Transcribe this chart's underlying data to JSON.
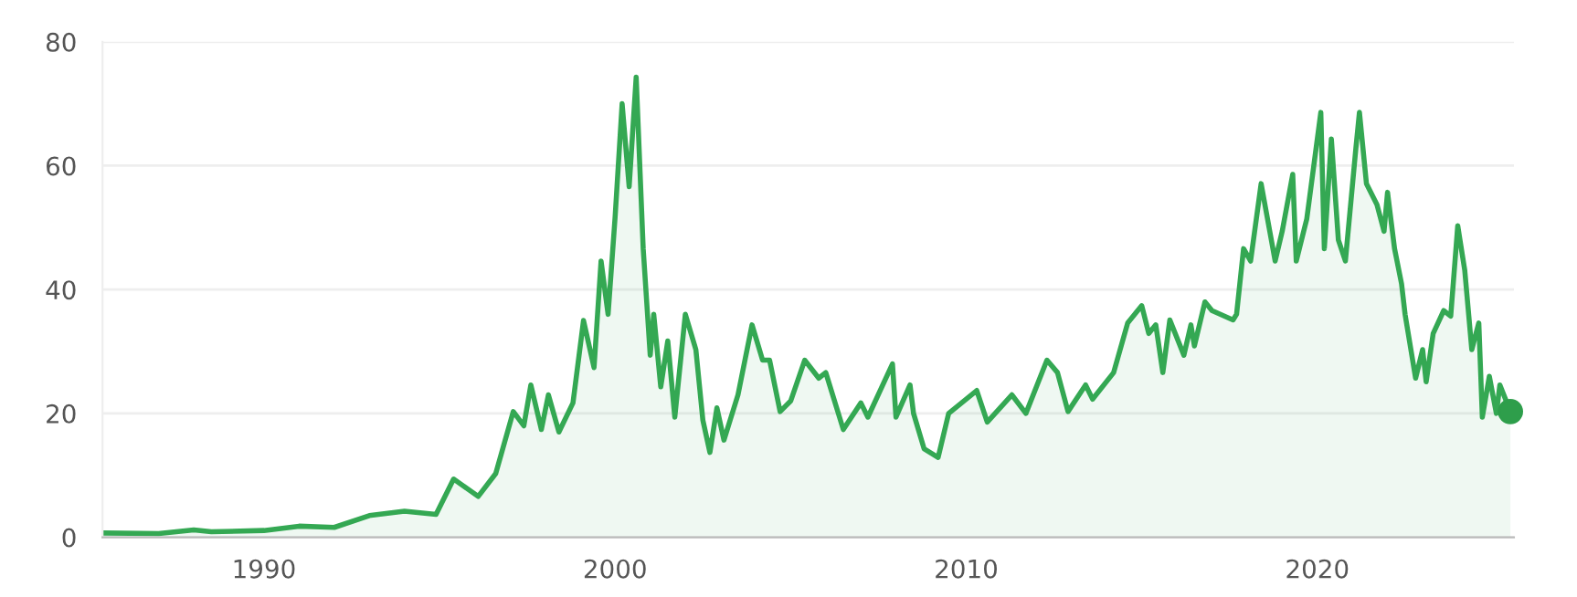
{
  "chart_data": {
    "type": "area",
    "xlim": [
      1985.4,
      2025.6
    ],
    "ylim": [
      0,
      80
    ],
    "yticks": [
      0,
      20,
      40,
      60,
      80
    ],
    "xticks": [
      1990,
      2000,
      2010,
      2020
    ],
    "grid": "y",
    "legend": false,
    "series": [
      {
        "color": "#34a853",
        "x": [
          1985.4,
          1987,
          1988,
          1988.5,
          1990,
          1991,
          1992,
          1993,
          1994,
          1994.9,
          1995.4,
          1996.1,
          1996.6,
          1997.1,
          1997.4,
          1997.6,
          1997.9,
          1998.1,
          1998.4,
          1998.8,
          1999.1,
          1999.4,
          1999.6,
          1999.8,
          2000.0,
          2000.2,
          2000.4,
          2000.6,
          2000.8,
          2001.0,
          2001.1,
          2001.3,
          2001.5,
          2001.7,
          2002.0,
          2002.3,
          2002.5,
          2002.7,
          2002.9,
          2003.1,
          2003.5,
          2003.9,
          2004.2,
          2004.4,
          2004.7,
          2005.0,
          2005.4,
          2005.8,
          2006.0,
          2006.5,
          2007.0,
          2007.2,
          2007.9,
          2008.0,
          2008.4,
          2008.5,
          2008.8,
          2009.2,
          2009.5,
          2010.3,
          2010.6,
          2011.3,
          2011.7,
          2012.3,
          2012.6,
          2012.9,
          2013.4,
          2013.6,
          2014.2,
          2014.6,
          2015.0,
          2015.2,
          2015.4,
          2015.6,
          2015.8,
          2016.2,
          2016.4,
          2016.5,
          2016.8,
          2017.0,
          2017.6,
          2017.7,
          2017.9,
          2018.1,
          2018.4,
          2018.8,
          2019.0,
          2019.3,
          2019.4,
          2019.7,
          2020.1,
          2020.2,
          2020.4,
          2020.6,
          2020.8,
          2021.1,
          2021.2,
          2021.4,
          2021.7,
          2021.9,
          2022.0,
          2022.2,
          2022.4,
          2022.5,
          2022.8,
          2023.0,
          2023.1,
          2023.3,
          2023.6,
          2023.8,
          2024.0,
          2024.2,
          2024.4,
          2024.6,
          2024.7,
          2024.9,
          2025.1,
          2025.2,
          2025.5
        ],
        "values": [
          0.7,
          0.6,
          1.2,
          0.9,
          1.1,
          1.8,
          1.6,
          3.5,
          4.2,
          3.7,
          9.4,
          6.6,
          10.3,
          20.3,
          18,
          24.6,
          17.4,
          23,
          17,
          21.7,
          35,
          27.4,
          44.6,
          36,
          51.7,
          70,
          56.6,
          74.3,
          46.6,
          29.4,
          36,
          24.3,
          31.7,
          19.4,
          36,
          30.3,
          18.9,
          13.7,
          20.9,
          15.7,
          23,
          34.3,
          28.6,
          28.6,
          20.3,
          22,
          28.6,
          25.7,
          26.6,
          17.4,
          21.7,
          19.4,
          28,
          19.4,
          24.6,
          20,
          14.3,
          12.9,
          20,
          23.7,
          18.6,
          23,
          20,
          28.6,
          26.6,
          20.3,
          24.6,
          22.3,
          26.6,
          34.6,
          37.4,
          32.9,
          34.3,
          26.6,
          35.1,
          29.4,
          34.3,
          30.9,
          38,
          36.6,
          35.1,
          36,
          46.6,
          44.6,
          57.1,
          44.6,
          49.4,
          58.6,
          44.6,
          51.4,
          68.6,
          46.6,
          64.3,
          48,
          44.6,
          62.9,
          68.6,
          57.1,
          53.7,
          49.4,
          55.7,
          46.6,
          40.9,
          36,
          25.7,
          30.3,
          25.1,
          32.9,
          36.6,
          35.7,
          50.3,
          43.1,
          30.3,
          34.6,
          19.4,
          26,
          20,
          24.6,
          20.3
        ]
      },
      {
        "type": "scatter",
        "marker": "circle",
        "color": "#2e9e4b",
        "x": [
          2025.5
        ],
        "values": [
          20.3
        ]
      }
    ]
  }
}
